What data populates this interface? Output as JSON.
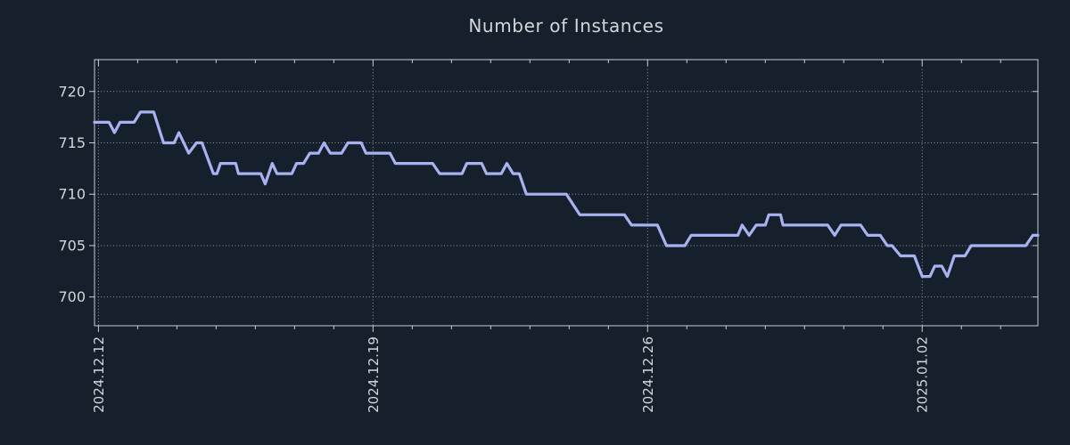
{
  "chart_data": {
    "type": "line",
    "title": "Number of Instances",
    "xlabel": "",
    "ylabel": "",
    "legend": "none",
    "grid": true,
    "grid_style": "dotted",
    "x_start_date": "2024.12.12",
    "x_tick_labels": [
      "2024.12.12",
      "2024.12.19",
      "2024.12.26",
      "2025.01.02"
    ],
    "x_tick_days": [
      0,
      7,
      14,
      21
    ],
    "x_minor_tick_interval_days": 1,
    "y_ticks": [
      700,
      705,
      710,
      715,
      720
    ],
    "ylim": [
      697.2,
      723.1
    ],
    "xlim_days": [
      -0.1,
      23.95
    ],
    "series": [
      {
        "name": "instances",
        "points_format": "[days_since_2024.12.12, value]",
        "points": [
          [
            -0.1,
            717
          ],
          [
            0.27,
            717
          ],
          [
            0.41,
            716
          ],
          [
            0.55,
            717
          ],
          [
            0.91,
            717
          ],
          [
            1.07,
            718
          ],
          [
            1.41,
            718
          ],
          [
            1.66,
            715
          ],
          [
            1.93,
            715
          ],
          [
            2.05,
            716
          ],
          [
            2.3,
            714
          ],
          [
            2.5,
            715
          ],
          [
            2.64,
            715
          ],
          [
            2.93,
            712
          ],
          [
            3.02,
            712
          ],
          [
            3.11,
            713
          ],
          [
            3.5,
            713
          ],
          [
            3.57,
            712
          ],
          [
            4.14,
            712
          ],
          [
            4.25,
            711
          ],
          [
            4.43,
            713
          ],
          [
            4.55,
            712
          ],
          [
            4.93,
            712
          ],
          [
            5.05,
            713
          ],
          [
            5.23,
            713
          ],
          [
            5.39,
            714
          ],
          [
            5.61,
            714
          ],
          [
            5.75,
            715
          ],
          [
            5.91,
            714
          ],
          [
            6.2,
            714
          ],
          [
            6.36,
            715
          ],
          [
            6.7,
            715
          ],
          [
            6.82,
            714
          ],
          [
            7.43,
            714
          ],
          [
            7.57,
            713
          ],
          [
            8.52,
            713
          ],
          [
            8.7,
            712
          ],
          [
            9.27,
            712
          ],
          [
            9.39,
            713
          ],
          [
            9.77,
            713
          ],
          [
            9.89,
            712
          ],
          [
            10.27,
            712
          ],
          [
            10.41,
            713
          ],
          [
            10.57,
            712
          ],
          [
            10.73,
            712
          ],
          [
            10.91,
            710
          ],
          [
            11.93,
            710
          ],
          [
            12.27,
            708
          ],
          [
            13.41,
            708
          ],
          [
            13.59,
            707
          ],
          [
            14.25,
            707
          ],
          [
            14.48,
            705
          ],
          [
            14.95,
            705
          ],
          [
            15.11,
            706
          ],
          [
            16.3,
            706
          ],
          [
            16.41,
            707
          ],
          [
            16.59,
            706
          ],
          [
            16.77,
            707
          ],
          [
            17.0,
            707
          ],
          [
            17.09,
            708
          ],
          [
            17.39,
            708
          ],
          [
            17.45,
            707
          ],
          [
            18.59,
            707
          ],
          [
            18.77,
            706
          ],
          [
            18.93,
            707
          ],
          [
            19.43,
            707
          ],
          [
            19.61,
            706
          ],
          [
            19.93,
            706
          ],
          [
            20.11,
            705
          ],
          [
            20.23,
            705
          ],
          [
            20.45,
            704
          ],
          [
            20.8,
            704
          ],
          [
            21.0,
            702
          ],
          [
            21.2,
            702
          ],
          [
            21.32,
            703
          ],
          [
            21.5,
            703
          ],
          [
            21.64,
            702
          ],
          [
            21.82,
            704
          ],
          [
            22.09,
            704
          ],
          [
            22.25,
            705
          ],
          [
            23.64,
            705
          ],
          [
            23.82,
            706
          ],
          [
            23.95,
            706
          ]
        ]
      }
    ]
  },
  "colors": {
    "background": "#161f2c",
    "line": "#a9b2f0",
    "spine": "#c9ccd2",
    "grid": "#a8aeb6",
    "text": "#d3d6db"
  }
}
